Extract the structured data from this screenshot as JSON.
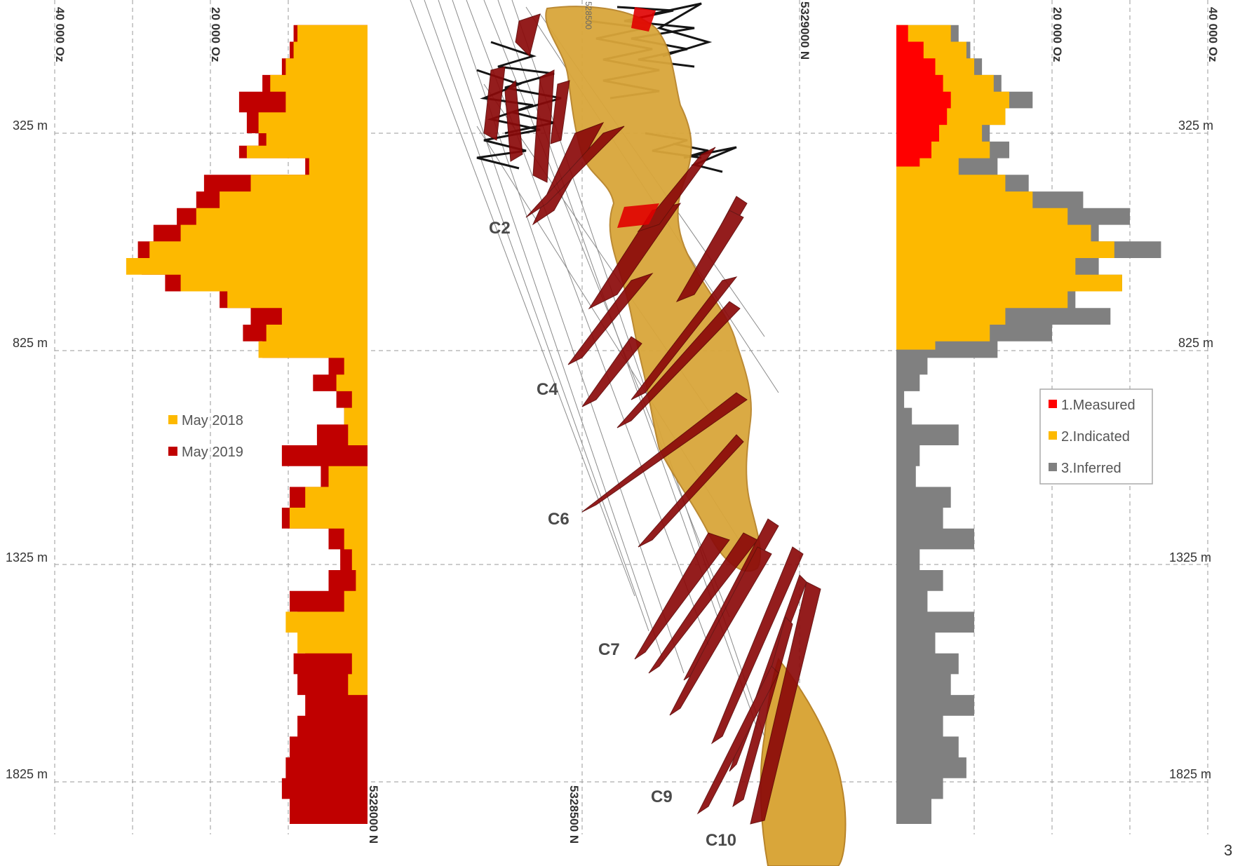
{
  "chart_data": [
    {
      "type": "area",
      "orientation": "horizontal-from-right",
      "x_ticks": [
        "40 000 Oz",
        "20 000 Oz"
      ],
      "xlim": [
        0,
        40000
      ],
      "y_ticks": [
        "325 m",
        "825 m",
        "1325 m",
        "1825 m"
      ],
      "ylim": [
        0,
        1960
      ],
      "bottom_label": "5328000 N",
      "legend": {
        "position": "middle-left"
      },
      "series": [
        {
          "name": "May 2018",
          "color": "#FDB900",
          "depth_m": [
            0,
            40,
            80,
            120,
            160,
            200,
            250,
            300,
            330,
            360,
            400,
            440,
            480,
            520,
            560,
            600,
            640,
            680,
            720,
            760,
            800,
            840,
            880,
            920,
            960,
            1000,
            1050,
            1100,
            1150,
            1200,
            1250,
            1300,
            1350,
            1400,
            1450,
            1500,
            1550,
            1600,
            1650,
            1700,
            1750,
            1800,
            1850,
            1900,
            1960
          ],
          "oz": [
            0,
            9000,
            9500,
            10500,
            12500,
            10500,
            14000,
            13000,
            15500,
            7500,
            15000,
            19000,
            22000,
            24000,
            28000,
            31000,
            24000,
            18000,
            11000,
            13000,
            14000,
            3000,
            4000,
            2000,
            3000,
            2500,
            0,
            5000,
            8000,
            10000,
            3000,
            2000,
            1500,
            3000,
            10500,
            9000,
            2000,
            2500,
            0,
            0,
            0,
            0,
            0,
            0,
            0
          ]
        },
        {
          "name": "May 2019",
          "color": "#C00000",
          "depth_m": [
            0,
            40,
            80,
            120,
            160,
            200,
            250,
            300,
            330,
            360,
            400,
            440,
            480,
            520,
            560,
            600,
            640,
            680,
            720,
            760,
            800,
            840,
            880,
            920,
            960,
            1000,
            1050,
            1100,
            1150,
            1200,
            1250,
            1300,
            1350,
            1400,
            1450,
            1500,
            1550,
            1600,
            1650,
            1700,
            1750,
            1800,
            1850,
            1900,
            1960
          ],
          "oz": [
            0,
            9500,
            10000,
            11000,
            13500,
            16500,
            15500,
            14000,
            16500,
            8000,
            21000,
            22000,
            24500,
            27500,
            29500,
            29000,
            26000,
            19000,
            15000,
            16000,
            13500,
            5000,
            7000,
            4000,
            3000,
            6500,
            11000,
            6000,
            10000,
            11000,
            5000,
            3500,
            5000,
            10000,
            9000,
            8000,
            9500,
            9000,
            8000,
            9000,
            10000,
            10500,
            11000,
            10000,
            0
          ]
        }
      ]
    },
    {
      "type": "area",
      "orientation": "horizontal-from-left",
      "x_ticks": [
        "20 000 Oz",
        "40 000 Oz"
      ],
      "xlim": [
        0,
        40000
      ],
      "y_ticks": [
        "325 m",
        "825 m",
        "1325 m",
        "1825 m"
      ],
      "ylim": [
        0,
        1960
      ],
      "legend": {
        "position": "middle-right"
      },
      "series": [
        {
          "name": "1.Measured",
          "color": "#FF0000",
          "depth_m": [
            0,
            40,
            80,
            120,
            160,
            200,
            240,
            280,
            320,
            360,
            380
          ],
          "oz": [
            0,
            1500,
            3500,
            5000,
            6000,
            7000,
            6500,
            5500,
            4500,
            3000,
            0
          ]
        },
        {
          "name": "2.Indicated",
          "color": "#FDB900",
          "depth_m": [
            0,
            40,
            80,
            120,
            160,
            200,
            240,
            280,
            320,
            360,
            400,
            440,
            480,
            520,
            560,
            600,
            640,
            680,
            720,
            760,
            800,
            820
          ],
          "oz": [
            0,
            7000,
            9000,
            10000,
            12500,
            14500,
            14000,
            11000,
            12000,
            8000,
            14000,
            17500,
            22000,
            25000,
            28000,
            23000,
            29000,
            22000,
            14000,
            12000,
            5000,
            0
          ]
        },
        {
          "name": "3.Inferred",
          "color": "#808080",
          "depth_m": [
            0,
            40,
            80,
            120,
            160,
            200,
            240,
            280,
            320,
            360,
            400,
            440,
            480,
            520,
            560,
            600,
            640,
            680,
            720,
            760,
            800,
            840,
            880,
            920,
            960,
            1000,
            1050,
            1100,
            1150,
            1200,
            1250,
            1300,
            1350,
            1400,
            1450,
            1500,
            1550,
            1600,
            1650,
            1700,
            1750,
            1800,
            1850,
            1900,
            1960
          ],
          "oz": [
            0,
            8000,
            9500,
            11000,
            13500,
            17500,
            14000,
            12000,
            14500,
            13000,
            17000,
            24000,
            30000,
            26000,
            34000,
            26000,
            29000,
            23000,
            27500,
            20000,
            13000,
            4000,
            3000,
            1000,
            2000,
            8000,
            3000,
            2500,
            7000,
            6000,
            10000,
            3000,
            6000,
            4000,
            10000,
            5000,
            8000,
            7000,
            10000,
            6000,
            8000,
            9000,
            6000,
            4500,
            0
          ]
        }
      ]
    }
  ],
  "section": {
    "top_labels": [
      "5329000 N",
      "528500"
    ],
    "bottom_label": "5328500 N",
    "zone_labels": [
      "C2",
      "C4",
      "C6",
      "C7",
      "C9",
      "C10"
    ],
    "colors": {
      "shell": "#D9A63A",
      "zone": "#8B0A0A",
      "drill": "#1a1a1a"
    }
  },
  "page_number": "3"
}
